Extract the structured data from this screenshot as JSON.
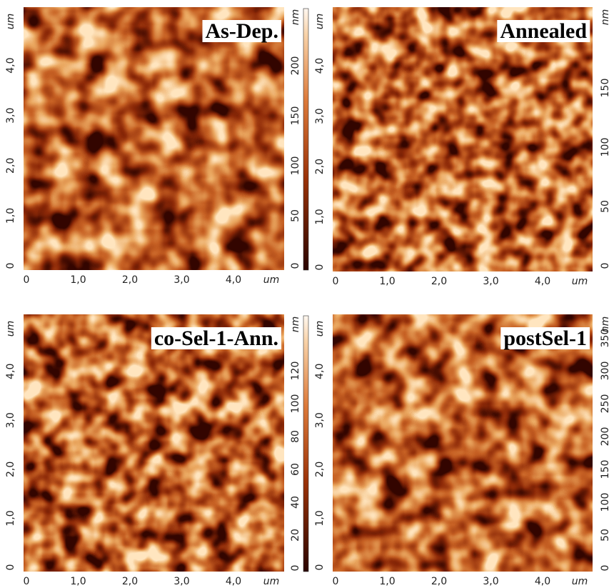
{
  "panels": [
    {
      "label": "As-Dep.",
      "x_ticks": [
        "0",
        "1,0",
        "2,0",
        "3,0",
        "4,0"
      ],
      "x_unit": "um",
      "y_ticks": [
        "0",
        "1,0",
        "2,0",
        "3,0",
        "4,0"
      ],
      "y_unit": "um",
      "colorbar_ticks": [
        "0",
        "50",
        "100",
        "150",
        "200"
      ],
      "colorbar_unit": "nm"
    },
    {
      "label": "Annealed",
      "x_ticks": [
        "0",
        "1,0",
        "2,0",
        "3,0",
        "4,0"
      ],
      "x_unit": "um",
      "y_ticks": [
        "0",
        "1,0",
        "2,0",
        "3,0",
        "4,0"
      ],
      "y_unit": "um",
      "colorbar_ticks": [
        "0",
        "50",
        "100",
        "150"
      ],
      "colorbar_unit": "nm"
    },
    {
      "label": "co-Sel-1-Ann.",
      "x_ticks": [
        "0",
        "1,0",
        "2,0",
        "3,0",
        "4,0"
      ],
      "x_unit": "um",
      "y_ticks": [
        "0",
        "1,0",
        "2,0",
        "3,0",
        "4,0"
      ],
      "y_unit": "um",
      "colorbar_ticks": [
        "0",
        "20",
        "40",
        "60",
        "80",
        "100",
        "120"
      ],
      "colorbar_unit": "nm"
    },
    {
      "label": "postSel-1",
      "x_ticks": [
        "0",
        "1,0",
        "2,0",
        "3,0",
        "4,0"
      ],
      "x_unit": "um",
      "y_ticks": [
        "0",
        "1,0",
        "2,0",
        "3,0",
        "4,0"
      ],
      "y_unit": "um",
      "colorbar_ticks": [
        "0",
        "50",
        "100",
        "150",
        "200",
        "250",
        "300",
        "350"
      ],
      "colorbar_unit": "nm"
    }
  ]
}
